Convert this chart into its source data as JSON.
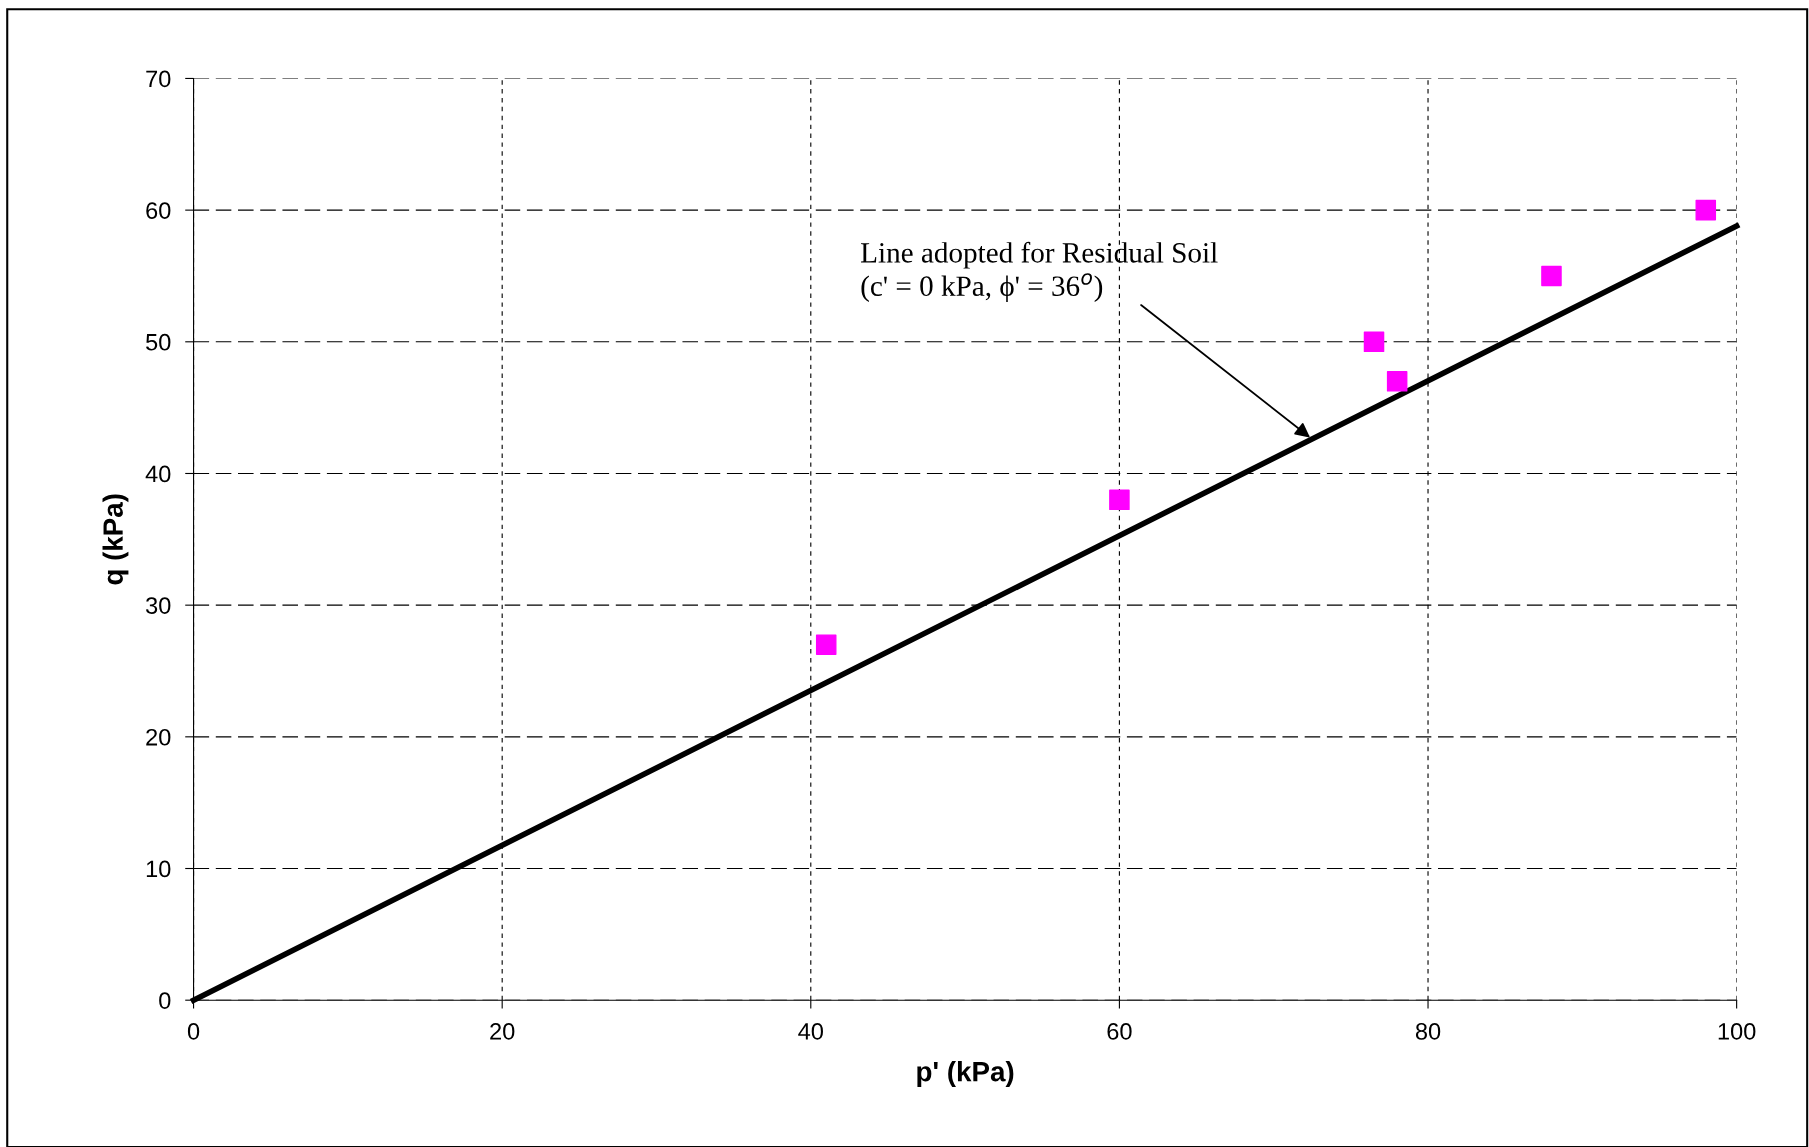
{
  "chart_data": {
    "type": "scatter",
    "xlabel": "p' (kPa)",
    "ylabel": "q (kPa)",
    "series": [
      {
        "color": "#ff00ff",
        "marker": "square",
        "x": [
          41,
          60,
          76.5,
          78,
          88,
          98
        ],
        "values": [
          27,
          38,
          50,
          47,
          55,
          60
        ]
      },
      {
        "type": "line",
        "color": "#000000",
        "marker": "none",
        "line_style": "solid",
        "x": [
          0,
          100
        ],
        "values": [
          0,
          58.8
        ]
      }
    ],
    "annotations": [
      {
        "text": "Line adopted for Residual Soil\n(c' = 0 kPa, ϕ' = 36$^{o}$)",
        "x": 72.5,
        "y": 42.6
      }
    ],
    "xlim": [
      0,
      100
    ],
    "xticks": [
      0,
      20,
      40,
      60,
      80,
      100
    ],
    "ylim": [
      0,
      70
    ],
    "yticks": [
      0,
      10,
      20,
      30,
      40,
      50,
      60,
      70
    ],
    "grid": true,
    "legend": false
  }
}
